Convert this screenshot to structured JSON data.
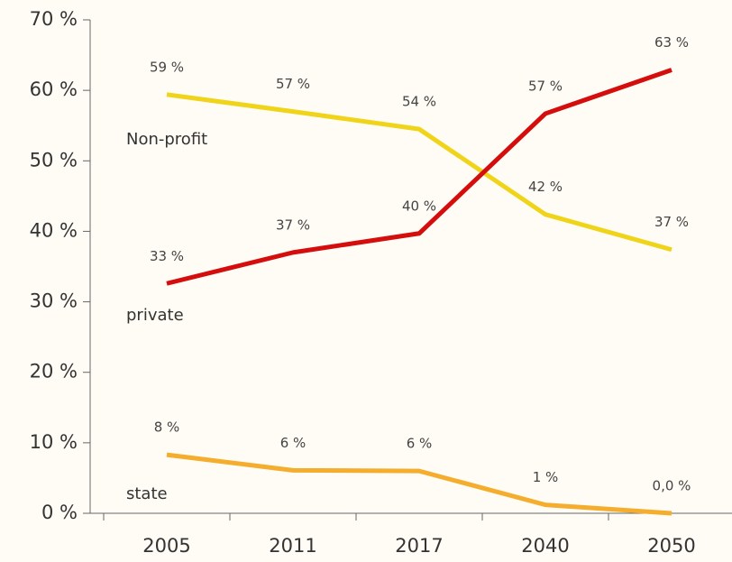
{
  "chart_data": {
    "type": "line",
    "categories": [
      "2005",
      "2011",
      "2017",
      "2040",
      "2050"
    ],
    "series": [
      {
        "name": "Non-profit",
        "color": "#f0d41a",
        "values": [
          59.4,
          57,
          54.5,
          42.4,
          37.4
        ],
        "value_labels": [
          "59 %",
          "57 %",
          "54 %",
          "42 %",
          "37 %"
        ]
      },
      {
        "name": "private",
        "color": "#d40d0d",
        "values": [
          32.6,
          37,
          39.7,
          56.7,
          62.9
        ],
        "value_labels": [
          "33 %",
          "37 %",
          "40 %",
          "57 %",
          "63 %"
        ]
      },
      {
        "name": "state",
        "color": "#f5ad2e",
        "values": [
          8.3,
          6.1,
          6.0,
          1.2,
          0
        ],
        "value_labels": [
          "8 %",
          "6 %",
          "6 %",
          "1 %",
          "0,0 %"
        ]
      }
    ],
    "ylim": [
      0,
      70
    ],
    "yticks": [
      {
        "value": 0,
        "label": "0 %"
      },
      {
        "value": 10,
        "label": "10 %"
      },
      {
        "value": 20,
        "label": "20 %"
      },
      {
        "value": 30,
        "label": "30 %"
      },
      {
        "value": 40,
        "label": "40 %"
      },
      {
        "value": 50,
        "label": "50 %"
      },
      {
        "value": 60,
        "label": "60 %"
      },
      {
        "value": 70,
        "label": "70 %"
      }
    ],
    "grid": false
  }
}
